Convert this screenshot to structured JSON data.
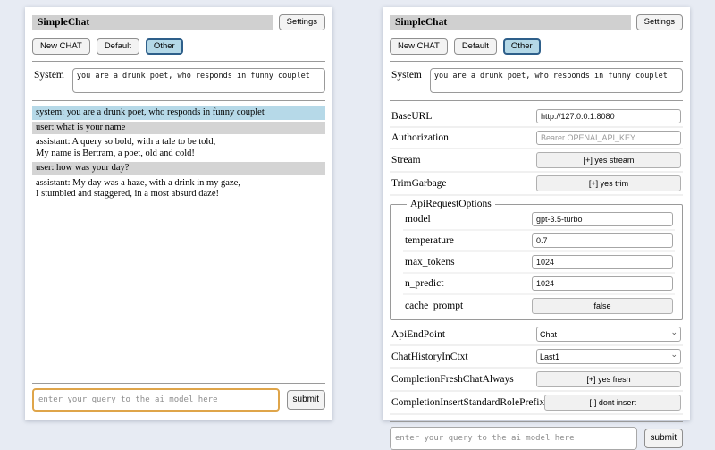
{
  "app": {
    "title": "SimpleChat",
    "settings_button": "Settings"
  },
  "toolbar": {
    "new_chat_button": "New CHAT",
    "default_button": "Default",
    "other_button": "Other"
  },
  "system_prompt": {
    "label": "System",
    "value": "you are a drunk poet, who responds in funny couplet"
  },
  "chat": {
    "messages": [
      {
        "role": "system",
        "text": "system: you are a drunk poet, who responds in funny couplet"
      },
      {
        "role": "user",
        "text": "user: what is your name"
      },
      {
        "role": "assistant",
        "text": "assistant: A query so bold, with a tale to be told,\nMy name is Bertram, a poet, old and cold!"
      },
      {
        "role": "user",
        "text": "user: how was your day?"
      },
      {
        "role": "assistant",
        "text": "assistant: My day was a haze, with a drink in my gaze,\nI stumbled and staggered, in a most absurd daze!"
      }
    ]
  },
  "query": {
    "placeholder": "enter your query to the ai model here",
    "submit_button": "submit"
  },
  "settings": {
    "baseurl": {
      "label": "BaseURL",
      "value": "http://127.0.0.1:8080"
    },
    "authorization": {
      "label": "Authorization",
      "placeholder": "Bearer OPENAI_API_KEY"
    },
    "stream": {
      "label": "Stream",
      "button": "[+] yes stream"
    },
    "trimgarbage": {
      "label": "TrimGarbage",
      "button": "[+] yes trim"
    },
    "api_request_options": {
      "legend": "ApiRequestOptions",
      "model": {
        "label": "model",
        "value": "gpt-3.5-turbo"
      },
      "temperature": {
        "label": "temperature",
        "value": "0.7"
      },
      "max_tokens": {
        "label": "max_tokens",
        "value": "1024"
      },
      "n_predict": {
        "label": "n_predict",
        "value": "1024"
      },
      "cache_prompt": {
        "label": "cache_prompt",
        "button": "false"
      }
    },
    "api_endpoint": {
      "label": "ApiEndPoint",
      "selected": "Chat"
    },
    "chat_history_in_ctxt": {
      "label": "ChatHistoryInCtxt",
      "selected": "Last1"
    },
    "completion_fresh_chat_always": {
      "label": "CompletionFreshChatAlways",
      "button": "[+] yes fresh"
    },
    "completion_insert_standard_role_prefix": {
      "label": "CompletionInsertStandardRolePrefix",
      "button": "[-] dont insert"
    }
  },
  "colors": {
    "page_background": "#e7ebf3",
    "titlebar_background": "#d0d0d0",
    "active_tab_background": "#b4d8e7",
    "active_tab_border": "#2e5f8a",
    "system_message_background": "#b6d9e8",
    "user_message_background": "#d4d4d4",
    "query_focus_border": "#dfa54a"
  }
}
